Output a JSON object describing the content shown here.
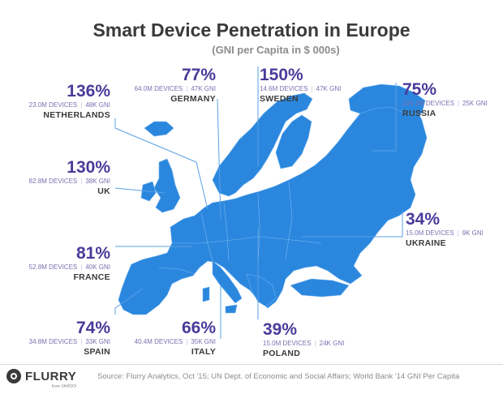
{
  "title": "Smart Device Penetration in Europe",
  "subtitle": "(GNI per Capita in $ 000s)",
  "colors": {
    "map": "#2b87de",
    "accent": "#4b3a9a",
    "detail": "#7b6fb0",
    "leader": "#5aa0e6"
  },
  "chart_data": {
    "type": "table",
    "title": "Smart Device Penetration in Europe",
    "subtitle": "(GNI per Capita in $ 000s)",
    "columns": [
      "country",
      "penetration",
      "devices",
      "gni"
    ],
    "rows": [
      {
        "country": "NETHERLANDS",
        "penetration": "136%",
        "devices": "23.0M DEVICES",
        "gni": "48K GNI"
      },
      {
        "country": "GERMANY",
        "penetration": "77%",
        "devices": "64.0M DEVICES",
        "gni": "47K GNI"
      },
      {
        "country": "SWEDEN",
        "penetration": "150%",
        "devices": "14.6M DEVICES",
        "gni": "47K GNI"
      },
      {
        "country": "RUSSIA",
        "penetration": "75%",
        "devices": "106.1M DEVICES",
        "gni": "25K GNI"
      },
      {
        "country": "UK",
        "penetration": "130%",
        "devices": "82.8M DEVICES",
        "gni": "38K GNI"
      },
      {
        "country": "UKRAINE",
        "penetration": "34%",
        "devices": "15.0M DEVICES",
        "gni": "9K GNI"
      },
      {
        "country": "FRANCE",
        "penetration": "81%",
        "devices": "52.8M DEVICES",
        "gni": "40K GNI"
      },
      {
        "country": "SPAIN",
        "penetration": "74%",
        "devices": "34.8M DEVICES",
        "gni": "33K GNI"
      },
      {
        "country": "ITALY",
        "penetration": "66%",
        "devices": "40.4M DEVICES",
        "gni": "35K GNI"
      },
      {
        "country": "POLAND",
        "penetration": "39%",
        "devices": "15.0M DEVICES",
        "gni": "24K GNI"
      }
    ]
  },
  "logo": {
    "name": "FLURRY",
    "sub": "from YAHOO!"
  },
  "source": "Source: Flurry Analytics, Oct '15; UN Dept. of Economic and Social Affairs; World Bank '14 GNI Per Capita"
}
